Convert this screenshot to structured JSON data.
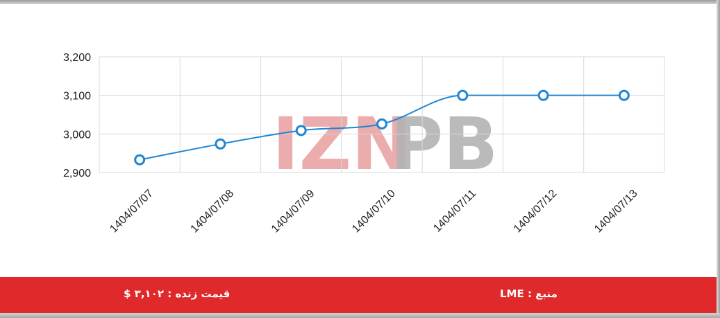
{
  "chart_data": {
    "type": "line",
    "x": [
      "1404/07/07",
      "1404/07/08",
      "1404/07/09",
      "1404/07/10",
      "1404/07/11",
      "1404/07/12",
      "1404/07/13"
    ],
    "series": [
      {
        "values": [
          2933,
          2974,
          3009,
          3026,
          3100,
          3100,
          3100
        ]
      }
    ],
    "yticks": [
      "2,900",
      "3,000",
      "3,100",
      "3,200"
    ],
    "ylim": [
      2900,
      3200
    ],
    "grid": true,
    "line_color": "#1f86d4",
    "title": "",
    "xlabel": "",
    "ylabel": ""
  },
  "watermark": {
    "text": "IZNPB",
    "colors": {
      "IZN": "#e8a3a3",
      "PB": "#b3b3b3"
    }
  },
  "footer": {
    "price_text": "قیمت زنده : ۳,۱۰۲ $",
    "source_text": "منبع : LME",
    "background": "#e0292b"
  }
}
